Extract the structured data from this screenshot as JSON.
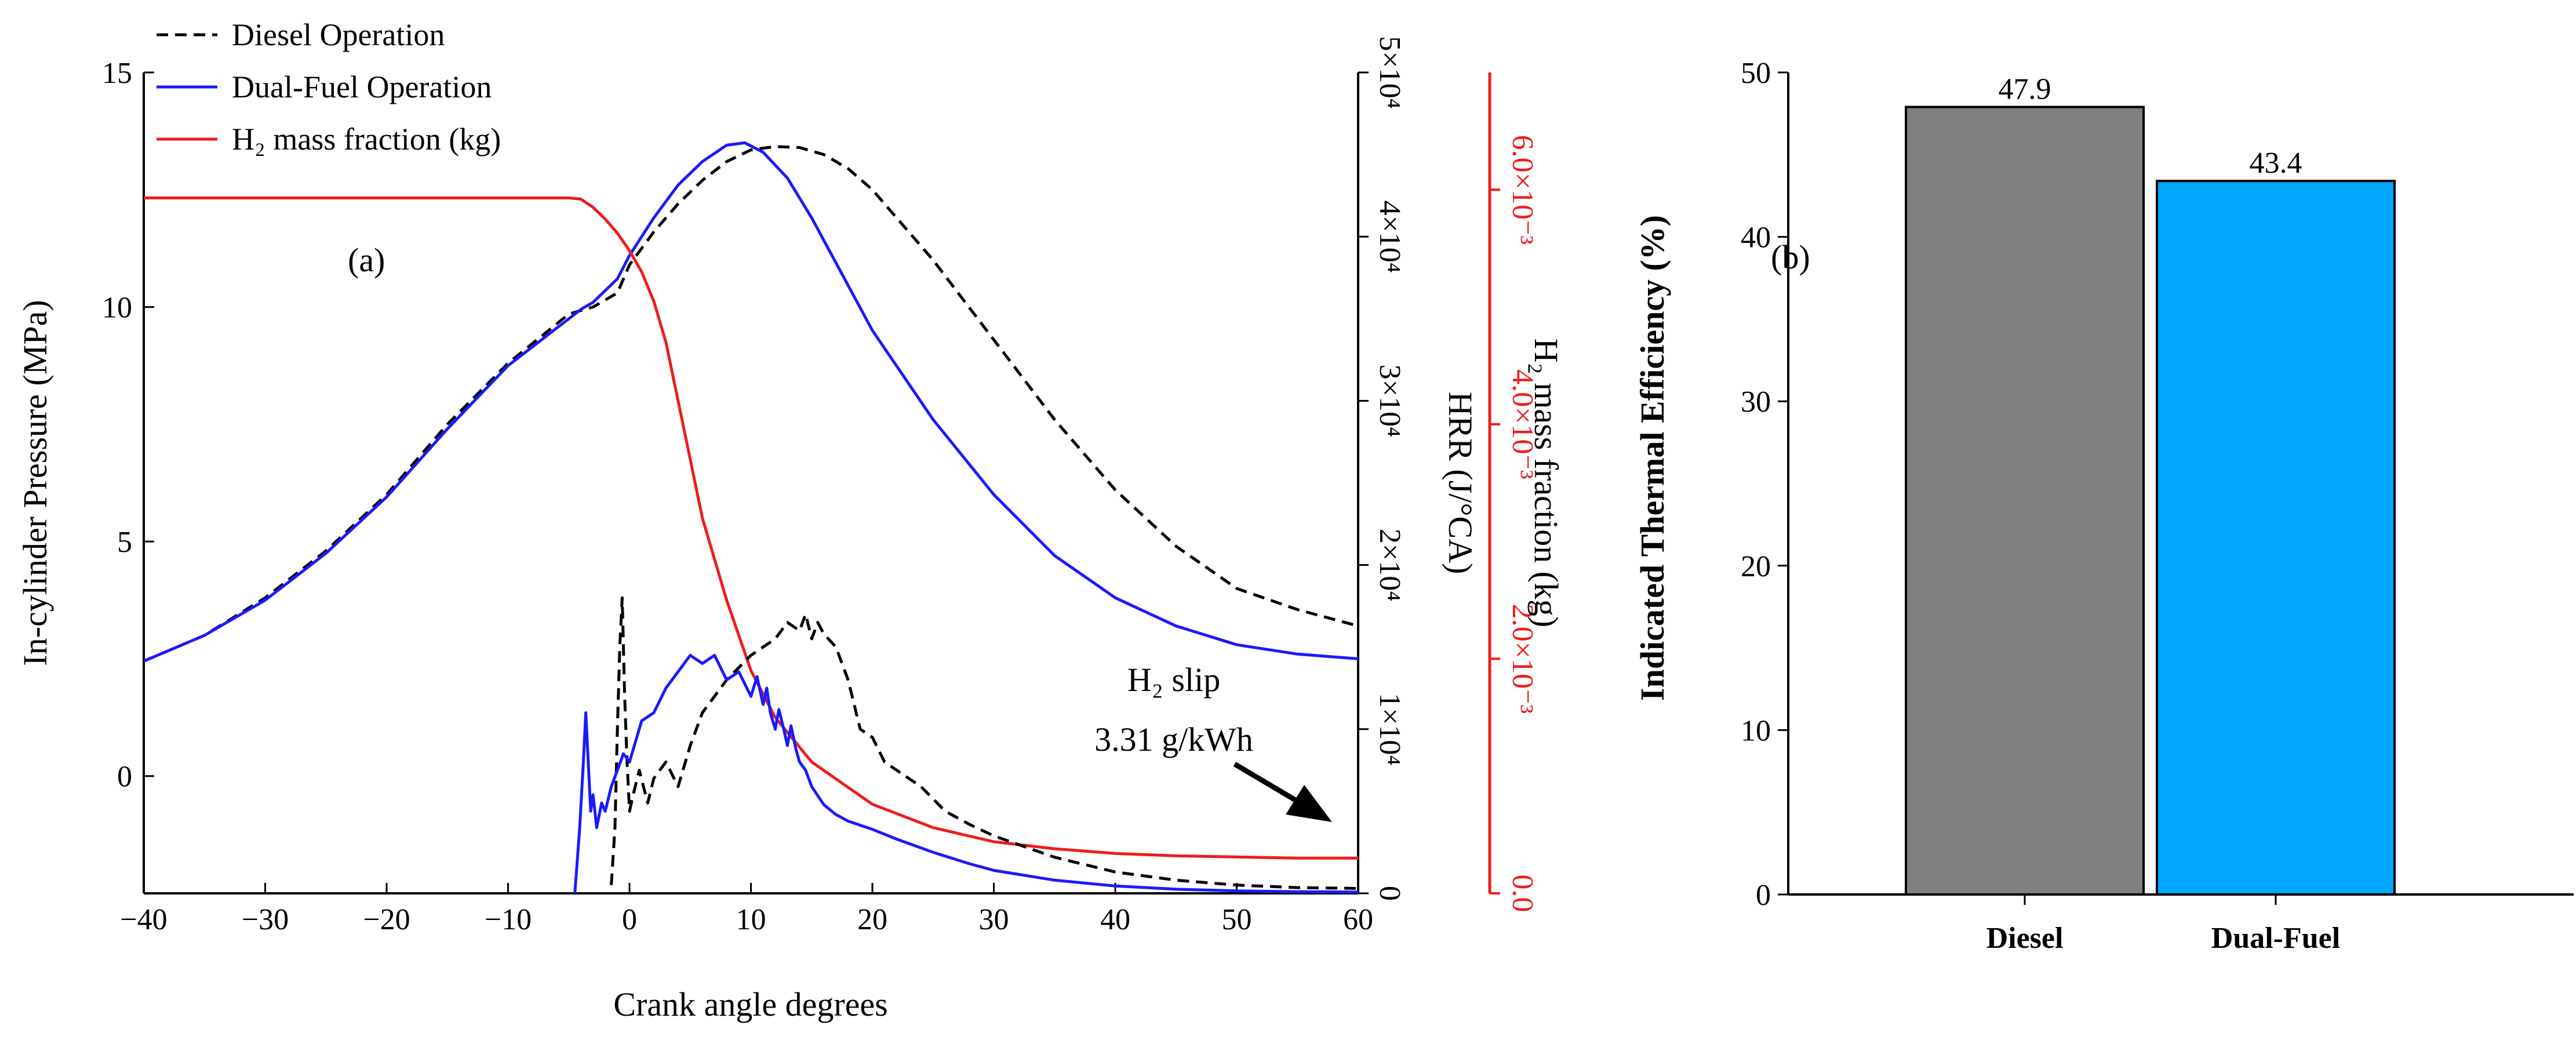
{
  "chart_data": [
    {
      "id": "a",
      "type": "line",
      "panel_label": "(a)",
      "xlabel": "Crank angle degrees",
      "xlim": [
        -40,
        60
      ],
      "xticks": [
        -40,
        -30,
        -20,
        -10,
        0,
        10,
        20,
        30,
        40,
        50,
        60
      ],
      "xtick_labels": [
        "−40",
        "−30",
        "−20",
        "−10",
        "0",
        "10",
        "20",
        "30",
        "40",
        "50",
        "60"
      ],
      "ylabel": "In-cylinder Pressure (MPa)",
      "ylim": [
        -2.5,
        15
      ],
      "yticks": [
        0,
        5,
        10,
        15
      ],
      "ylabel_hrr": "HRR (J/°CA)",
      "ylim_hrr": [
        0,
        50000
      ],
      "yticks_hrr": [
        0,
        10000,
        20000,
        30000,
        40000,
        50000
      ],
      "ytick_labels_hrr": [
        "0",
        "1×10⁴",
        "2×10⁴",
        "3×10⁴",
        "4×10⁴",
        "5×10⁴"
      ],
      "ylabel_h2": "H₂ mass fraction (kg)",
      "ylim_h2": [
        0,
        0.007
      ],
      "yticks_h2": [
        0,
        0.002,
        0.004,
        0.006
      ],
      "ytick_labels_h2": [
        "0.0",
        "2.0×10⁻³",
        "4.0×10⁻³",
        "6.0×10⁻³"
      ],
      "colors": {
        "diesel": "#000000",
        "dual": "#1a1aff",
        "h2": "#ee1c1c"
      },
      "legend": [
        "Diesel Operation",
        "Dual-Fuel Operation",
        "H₂ mass fraction (kg)"
      ],
      "annotation": {
        "line1": "H₂ slip",
        "line2": "3.31 g/kWh"
      },
      "series": [
        {
          "name": "Diesel Operation",
          "axis": "pressure",
          "x": [
            -40,
            -35,
            -30,
            -25,
            -20,
            -15,
            -10,
            -5,
            -3,
            -1,
            0,
            2,
            4,
            6,
            8,
            10,
            12,
            14,
            16,
            18,
            20,
            25,
            30,
            35,
            40,
            45,
            50,
            55,
            60
          ],
          "y": [
            2.45,
            3.0,
            3.8,
            4.8,
            6.0,
            7.5,
            8.8,
            9.85,
            10.0,
            10.3,
            10.9,
            11.6,
            12.2,
            12.7,
            13.1,
            13.35,
            13.42,
            13.4,
            13.25,
            12.95,
            12.5,
            11.0,
            9.3,
            7.6,
            6.1,
            4.9,
            4.0,
            3.55,
            3.2
          ]
        },
        {
          "name": "Dual-Fuel Operation",
          "axis": "pressure",
          "x": [
            -40,
            -35,
            -30,
            -25,
            -20,
            -15,
            -10,
            -6,
            -5,
            -4,
            -3,
            -1,
            0,
            2,
            4,
            6,
            8,
            9.5,
            11,
            13,
            15,
            20,
            25,
            30,
            35,
            40,
            45,
            50,
            55,
            60
          ],
          "y": [
            2.45,
            3.0,
            3.75,
            4.75,
            5.95,
            7.4,
            8.75,
            9.55,
            9.75,
            9.95,
            10.1,
            10.6,
            11.1,
            11.9,
            12.6,
            13.1,
            13.45,
            13.5,
            13.3,
            12.75,
            11.9,
            9.5,
            7.6,
            6.0,
            4.7,
            3.8,
            3.2,
            2.8,
            2.6,
            2.5
          ]
        },
        {
          "name": "H₂ mass fraction (kg)",
          "axis": "h2",
          "x": [
            -40,
            -5,
            -4,
            -3,
            -2,
            -1,
            0,
            1,
            2,
            3,
            4,
            5,
            6,
            8,
            10,
            12,
            15,
            20,
            25,
            30,
            35,
            40,
            45,
            50,
            55,
            60
          ],
          "y": [
            0.00593,
            0.00593,
            0.00592,
            0.00585,
            0.00575,
            0.00563,
            0.00548,
            0.0053,
            0.00505,
            0.0047,
            0.0042,
            0.0037,
            0.0032,
            0.0025,
            0.0019,
            0.0015,
            0.00112,
            0.00076,
            0.00056,
            0.00044,
            0.00038,
            0.00034,
            0.00032,
            0.00031,
            0.0003,
            0.0003
          ]
        },
        {
          "name": "Diesel HRR",
          "axis": "hrr",
          "x": [
            -1.5,
            -1.2,
            -1.0,
            -0.8,
            -0.6,
            -0.4,
            -0.2,
            0,
            0.3,
            0.8,
            1.5,
            2,
            3,
            4,
            5,
            6,
            8,
            10,
            12,
            13,
            14,
            14.5,
            15,
            15.5,
            16,
            17,
            18,
            19,
            20,
            21,
            22,
            24,
            26,
            28,
            30,
            35,
            40,
            45,
            50,
            55,
            60
          ],
          "y": [
            500,
            4000,
            10000,
            15000,
            18000,
            12000,
            8000,
            5000,
            6000,
            7500,
            5500,
            7000,
            8000,
            6500,
            9000,
            11000,
            13000,
            14500,
            15500,
            16500,
            16000,
            17000,
            15500,
            16500,
            15800,
            15000,
            13000,
            10000,
            9500,
            8000,
            7500,
            6500,
            5000,
            4200,
            3500,
            2200,
            1300,
            800,
            500,
            350,
            300
          ]
        },
        {
          "name": "Dual-Fuel HRR",
          "axis": "hrr",
          "x": [
            -4.5,
            -4.1,
            -3.8,
            -3.6,
            -3.4,
            -3.2,
            -3.0,
            -2.7,
            -2.3,
            -2.0,
            -1.5,
            -1.0,
            -0.5,
            0,
            1,
            2,
            3,
            4,
            5,
            6,
            7,
            8,
            9,
            10,
            10.5,
            11,
            11.3,
            11.6,
            12,
            12.3,
            12.7,
            13.0,
            13.3,
            13.7,
            14,
            14.5,
            15,
            16,
            17,
            18,
            20,
            22,
            25,
            28,
            30,
            35,
            40,
            45,
            50,
            55,
            60
          ],
          "y": [
            0,
            4000,
            8000,
            11000,
            8000,
            5000,
            6000,
            4000,
            5500,
            5000,
            6500,
            7500,
            8500,
            8000,
            10500,
            11000,
            12500,
            13500,
            14500,
            14000,
            14500,
            13000,
            13500,
            12000,
            13200,
            11500,
            12500,
            11000,
            10000,
            11200,
            10000,
            9000,
            10200,
            8800,
            8000,
            7500,
            6500,
            5400,
            4800,
            4400,
            3900,
            3300,
            2500,
            1800,
            1400,
            800,
            450,
            250,
            150,
            100,
            80
          ]
        }
      ]
    },
    {
      "id": "b",
      "type": "bar",
      "panel_label": "(b)",
      "categories": [
        "Diesel",
        "Dual-Fuel"
      ],
      "values": [
        47.9,
        43.4
      ],
      "value_labels": [
        "47.9",
        "43.4"
      ],
      "ylabel": "Indicated Thermal Efficiency (%)",
      "ylim": [
        0,
        50
      ],
      "yticks": [
        0,
        10,
        20,
        30,
        40,
        50
      ],
      "colors": [
        "#808080",
        "#00a6ff"
      ]
    }
  ]
}
